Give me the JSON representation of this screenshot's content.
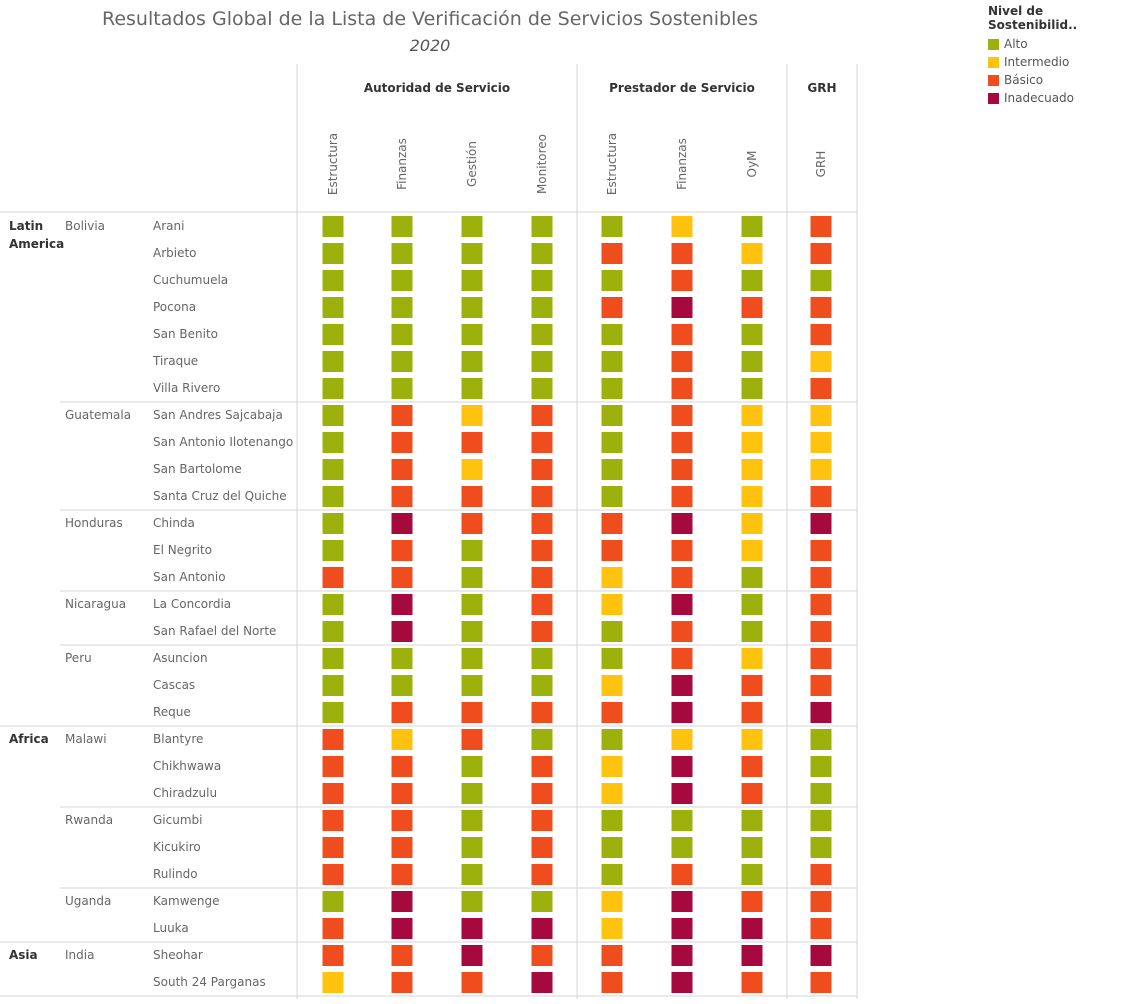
{
  "chart_data": {
    "type": "heatmap",
    "title": "Resultados Global de la Lista de Verificación de Servicios Sostenibles",
    "subtitle": "2020",
    "legend": {
      "title": "Nivel de Sostenibilid..",
      "placement": "top-right",
      "levels": [
        {
          "label": "Alto",
          "color": "#9db10c"
        },
        {
          "label": "Intermedio",
          "color": "#ffc20e"
        },
        {
          "label": "Básico",
          "color": "#f04d1f"
        },
        {
          "label": "Inadecuado",
          "color": "#a6093d"
        }
      ]
    },
    "column_groups": [
      {
        "label": "Autoridad de Servicio",
        "columns": [
          "Estructura",
          "Finanzas",
          "Gestión",
          "Monitoreo"
        ]
      },
      {
        "label": "Prestador de Servicio",
        "columns": [
          "Estructura",
          "Finanzas",
          "OyM"
        ]
      },
      {
        "label": "GRH",
        "columns": [
          "GRH"
        ]
      }
    ],
    "regions": [
      {
        "label": "Latin\nAmerica",
        "countries": [
          {
            "label": "Bolivia",
            "rows": [
              {
                "label": "Arani",
                "values": [
                  "Alto",
                  "Alto",
                  "Alto",
                  "Alto",
                  "Alto",
                  "Intermedio",
                  "Alto",
                  "Básico"
                ]
              },
              {
                "label": "Arbieto",
                "values": [
                  "Alto",
                  "Alto",
                  "Alto",
                  "Alto",
                  "Básico",
                  "Básico",
                  "Intermedio",
                  "Básico"
                ]
              },
              {
                "label": "Cuchumuela",
                "values": [
                  "Alto",
                  "Alto",
                  "Alto",
                  "Alto",
                  "Alto",
                  "Básico",
                  "Alto",
                  "Alto"
                ]
              },
              {
                "label": "Pocona",
                "values": [
                  "Alto",
                  "Alto",
                  "Alto",
                  "Alto",
                  "Básico",
                  "Inadecuado",
                  "Básico",
                  "Básico"
                ]
              },
              {
                "label": "San Benito",
                "values": [
                  "Alto",
                  "Alto",
                  "Alto",
                  "Alto",
                  "Alto",
                  "Básico",
                  "Alto",
                  "Básico"
                ]
              },
              {
                "label": "Tiraque",
                "values": [
                  "Alto",
                  "Alto",
                  "Alto",
                  "Alto",
                  "Alto",
                  "Básico",
                  "Alto",
                  "Intermedio"
                ]
              },
              {
                "label": "Villa Rivero",
                "values": [
                  "Alto",
                  "Alto",
                  "Alto",
                  "Alto",
                  "Alto",
                  "Básico",
                  "Alto",
                  "Básico"
                ]
              }
            ]
          },
          {
            "label": "Guatemala",
            "rows": [
              {
                "label": "San Andres Sajcabaja",
                "values": [
                  "Alto",
                  "Básico",
                  "Intermedio",
                  "Básico",
                  "Alto",
                  "Básico",
                  "Intermedio",
                  "Intermedio"
                ]
              },
              {
                "label": "San Antonio Ilotenango",
                "values": [
                  "Alto",
                  "Básico",
                  "Básico",
                  "Básico",
                  "Alto",
                  "Básico",
                  "Intermedio",
                  "Intermedio"
                ]
              },
              {
                "label": "San Bartolome",
                "values": [
                  "Alto",
                  "Básico",
                  "Intermedio",
                  "Básico",
                  "Alto",
                  "Básico",
                  "Intermedio",
                  "Intermedio"
                ]
              },
              {
                "label": "Santa Cruz del Quiche",
                "values": [
                  "Alto",
                  "Básico",
                  "Básico",
                  "Básico",
                  "Alto",
                  "Básico",
                  "Intermedio",
                  "Básico"
                ]
              }
            ]
          },
          {
            "label": "Honduras",
            "rows": [
              {
                "label": "Chinda",
                "values": [
                  "Alto",
                  "Inadecuado",
                  "Básico",
                  "Básico",
                  "Básico",
                  "Inadecuado",
                  "Intermedio",
                  "Inadecuado"
                ]
              },
              {
                "label": "El Negrito",
                "values": [
                  "Alto",
                  "Básico",
                  "Alto",
                  "Básico",
                  "Básico",
                  "Básico",
                  "Intermedio",
                  "Básico"
                ]
              },
              {
                "label": "San Antonio",
                "values": [
                  "Básico",
                  "Básico",
                  "Alto",
                  "Básico",
                  "Intermedio",
                  "Básico",
                  "Alto",
                  "Básico"
                ]
              }
            ]
          },
          {
            "label": "Nicaragua",
            "rows": [
              {
                "label": "La Concordia",
                "values": [
                  "Alto",
                  "Inadecuado",
                  "Alto",
                  "Básico",
                  "Intermedio",
                  "Inadecuado",
                  "Alto",
                  "Básico"
                ]
              },
              {
                "label": "San Rafael del Norte",
                "values": [
                  "Alto",
                  "Inadecuado",
                  "Alto",
                  "Básico",
                  "Alto",
                  "Básico",
                  "Alto",
                  "Básico"
                ]
              }
            ]
          },
          {
            "label": "Peru",
            "rows": [
              {
                "label": "Asuncion",
                "values": [
                  "Alto",
                  "Alto",
                  "Alto",
                  "Alto",
                  "Alto",
                  "Básico",
                  "Intermedio",
                  "Básico"
                ]
              },
              {
                "label": "Cascas",
                "values": [
                  "Alto",
                  "Alto",
                  "Alto",
                  "Alto",
                  "Intermedio",
                  "Inadecuado",
                  "Básico",
                  "Básico"
                ]
              },
              {
                "label": "Reque",
                "values": [
                  "Alto",
                  "Básico",
                  "Básico",
                  "Básico",
                  "Básico",
                  "Inadecuado",
                  "Básico",
                  "Inadecuado"
                ]
              }
            ]
          }
        ]
      },
      {
        "label": "Africa",
        "countries": [
          {
            "label": "Malawi",
            "rows": [
              {
                "label": "Blantyre",
                "values": [
                  "Básico",
                  "Intermedio",
                  "Básico",
                  "Alto",
                  "Alto",
                  "Intermedio",
                  "Intermedio",
                  "Alto"
                ]
              },
              {
                "label": "Chikhwawa",
                "values": [
                  "Básico",
                  "Básico",
                  "Alto",
                  "Básico",
                  "Intermedio",
                  "Inadecuado",
                  "Básico",
                  "Alto"
                ]
              },
              {
                "label": "Chiradzulu",
                "values": [
                  "Básico",
                  "Básico",
                  "Alto",
                  "Básico",
                  "Intermedio",
                  "Inadecuado",
                  "Básico",
                  "Alto"
                ]
              }
            ]
          },
          {
            "label": "Rwanda",
            "rows": [
              {
                "label": "Gicumbi",
                "values": [
                  "Básico",
                  "Básico",
                  "Alto",
                  "Básico",
                  "Alto",
                  "Alto",
                  "Alto",
                  "Alto"
                ]
              },
              {
                "label": "Kicukiro",
                "values": [
                  "Básico",
                  "Básico",
                  "Alto",
                  "Básico",
                  "Alto",
                  "Alto",
                  "Alto",
                  "Alto"
                ]
              },
              {
                "label": "Rulindo",
                "values": [
                  "Básico",
                  "Básico",
                  "Alto",
                  "Básico",
                  "Alto",
                  "Básico",
                  "Alto",
                  "Básico"
                ]
              }
            ]
          },
          {
            "label": "Uganda",
            "rows": [
              {
                "label": "Kamwenge",
                "values": [
                  "Alto",
                  "Inadecuado",
                  "Alto",
                  "Alto",
                  "Intermedio",
                  "Inadecuado",
                  "Básico",
                  "Básico"
                ]
              },
              {
                "label": "Luuka",
                "values": [
                  "Básico",
                  "Inadecuado",
                  "Inadecuado",
                  "Inadecuado",
                  "Intermedio",
                  "Inadecuado",
                  "Inadecuado",
                  "Básico"
                ]
              }
            ]
          }
        ]
      },
      {
        "label": "Asia",
        "countries": [
          {
            "label": "India",
            "rows": [
              {
                "label": "Sheohar",
                "values": [
                  "Básico",
                  "Básico",
                  "Inadecuado",
                  "Básico",
                  "Básico",
                  "Inadecuado",
                  "Inadecuado",
                  "Inadecuado"
                ]
              },
              {
                "label": "South 24 Parganas",
                "values": [
                  "Intermedio",
                  "Básico",
                  "Básico",
                  "Inadecuado",
                  "Básico",
                  "Inadecuado",
                  "Básico",
                  "Básico"
                ]
              }
            ]
          }
        ]
      }
    ]
  }
}
